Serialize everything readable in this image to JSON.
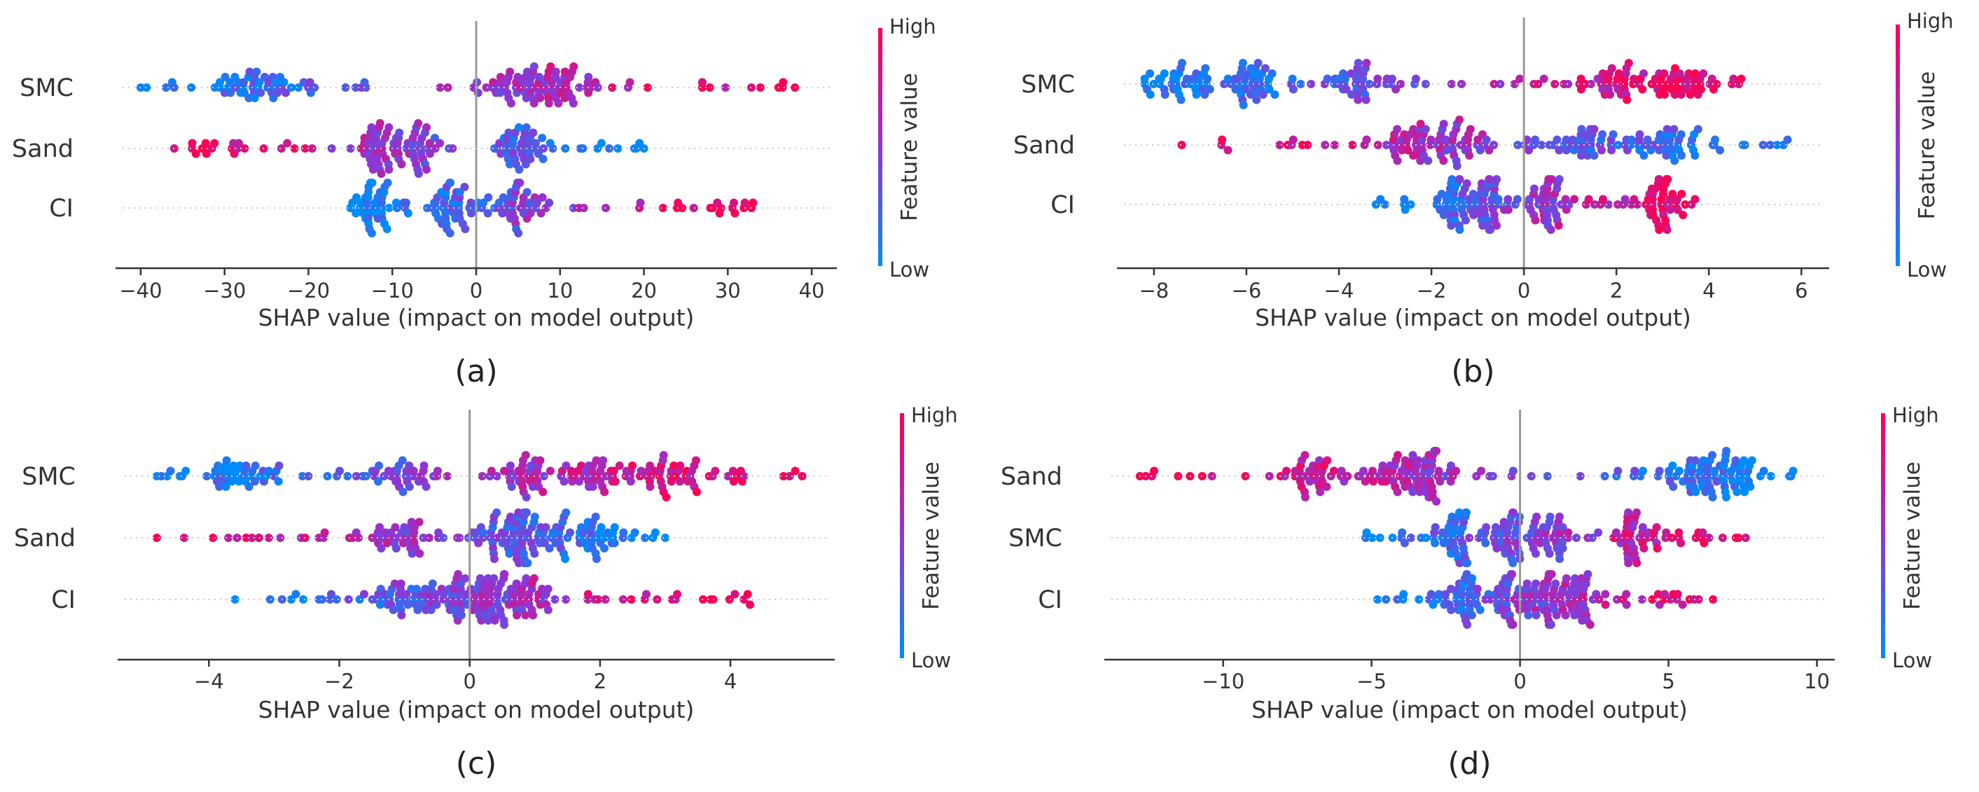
{
  "colors": {
    "low": "#008bfb",
    "high": "#ff0052",
    "zero_line": "#999999",
    "axis": "#333333",
    "text": "#333333"
  },
  "colorbar": {
    "high_label": "High",
    "low_label": "Low",
    "title": "Feature value"
  },
  "chart_data": [
    {
      "type": "scatter",
      "subplot_label": "(a)",
      "xlabel": "SHAP value (impact on model output)",
      "xlim": [
        -43,
        43
      ],
      "xticks": [
        -40,
        -30,
        -20,
        -10,
        0,
        10,
        20,
        30,
        40
      ],
      "features": [
        "SMC",
        "Sand",
        "CI"
      ],
      "series": [
        {
          "feature": "SMC",
          "x_range": [
            -40,
            38
          ],
          "low_side": "negative",
          "cluster_centers": [
            -26,
            5,
            10
          ]
        },
        {
          "feature": "Sand",
          "x_range": [
            -36,
            20
          ],
          "low_side": "positive",
          "cluster_centers": [
            -12,
            -7,
            5
          ]
        },
        {
          "feature": "CI",
          "x_range": [
            -15,
            33
          ],
          "low_side": "negative",
          "cluster_centers": [
            -12,
            -3,
            5
          ]
        }
      ]
    },
    {
      "type": "scatter",
      "subplot_label": "(b)",
      "xlabel": "SHAP value (impact on model output)",
      "xlim": [
        -8.8,
        6.6
      ],
      "xticks": [
        -8,
        -6,
        -4,
        -2,
        0,
        2,
        4,
        6
      ],
      "features": [
        "SMC",
        "Sand",
        "CI"
      ],
      "series": [
        {
          "feature": "SMC",
          "x_range": [
            -8.2,
            4.7
          ],
          "low_side": "negative",
          "cluster_centers": [
            -7.5,
            -6,
            -3.5,
            2,
            3.4
          ]
        },
        {
          "feature": "Sand",
          "x_range": [
            -7.4,
            5.7
          ],
          "low_side": "positive",
          "cluster_centers": [
            -2.5,
            -1.3,
            1.5,
            3
          ]
        },
        {
          "feature": "CI",
          "x_range": [
            -3.2,
            3.7
          ],
          "low_side": "negative",
          "cluster_centers": [
            -1.5,
            -0.8,
            0.5,
            3
          ]
        }
      ]
    },
    {
      "type": "scatter",
      "subplot_label": "(c)",
      "xlabel": "SHAP value (impact on model output)",
      "xlim": [
        -5.4,
        5.6
      ],
      "xticks": [
        -4,
        -2,
        0,
        2,
        4
      ],
      "features": [
        "SMC",
        "Sand",
        "CI"
      ],
      "series": [
        {
          "feature": "SMC",
          "x_range": [
            -4.8,
            5.1
          ],
          "low_side": "negative",
          "cluster_centers": [
            -3.5,
            -1,
            0.9,
            1.9,
            3
          ]
        },
        {
          "feature": "Sand",
          "x_range": [
            -4.8,
            3
          ],
          "low_side": "positive",
          "cluster_centers": [
            -1,
            0.5,
            1,
            1.9
          ]
        },
        {
          "feature": "CI",
          "x_range": [
            -3.6,
            4.3
          ],
          "low_side": "negative",
          "cluster_centers": [
            -1,
            -0.2,
            0.3,
            0.8
          ]
        }
      ]
    },
    {
      "type": "scatter",
      "subplot_label": "(d)",
      "xlabel": "SHAP value (impact on model output)",
      "xlim": [
        -14,
        10.6
      ],
      "xticks": [
        -10,
        -5,
        0,
        5,
        10
      ],
      "features": [
        "Sand",
        "SMC",
        "CI"
      ],
      "series": [
        {
          "feature": "Sand",
          "x_range": [
            -12.8,
            9.2
          ],
          "low_side": "positive",
          "cluster_centers": [
            -7,
            -4.5,
            -3,
            6,
            7.3
          ]
        },
        {
          "feature": "SMC",
          "x_range": [
            -5.2,
            7.6
          ],
          "low_side": "negative",
          "cluster_centers": [
            -2.5,
            -0.5,
            1,
            3.8
          ]
        },
        {
          "feature": "CI",
          "x_range": [
            -4.8,
            6.5
          ],
          "low_side": "negative",
          "cluster_centers": [
            -2,
            -0.3,
            0.8,
            2
          ]
        }
      ]
    }
  ]
}
